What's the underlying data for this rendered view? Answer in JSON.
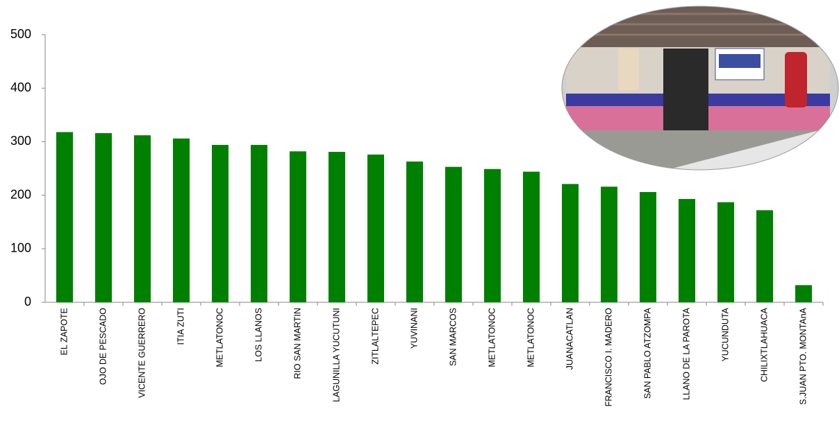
{
  "chart_data": {
    "type": "bar",
    "categories": [
      "EL ZAPOTE",
      "OJO DE PESCADO",
      "VICENTE GUERRERO",
      "ITIA ZUTI",
      "METLATONOC",
      "LOS LLANOS",
      "RIO SAN MARTIN",
      "LAGUNILLA YUCUTUNI",
      "ZITLALTEPEC",
      "YUVINANI",
      "SAN MARCOS",
      "METLATONOC",
      "METLATONOC",
      "JUANACATLAN",
      "FRANCISCO I. MADERO",
      "SAN PABLO ATZOMPA",
      "LLANO DE LA PAROTA",
      "YUCUNDUTA",
      "CHILIXTLAHUACA",
      "S.JUAN PTO. MONTAnA"
    ],
    "values": [
      318,
      316,
      312,
      306,
      294,
      294,
      282,
      281,
      276,
      263,
      253,
      249,
      244,
      221,
      216,
      206,
      193,
      187,
      172,
      32
    ],
    "color": "#008000",
    "ylim": [
      0,
      500
    ],
    "yticks": [
      0,
      100,
      200,
      300,
      400,
      500
    ],
    "grid": false
  }
}
